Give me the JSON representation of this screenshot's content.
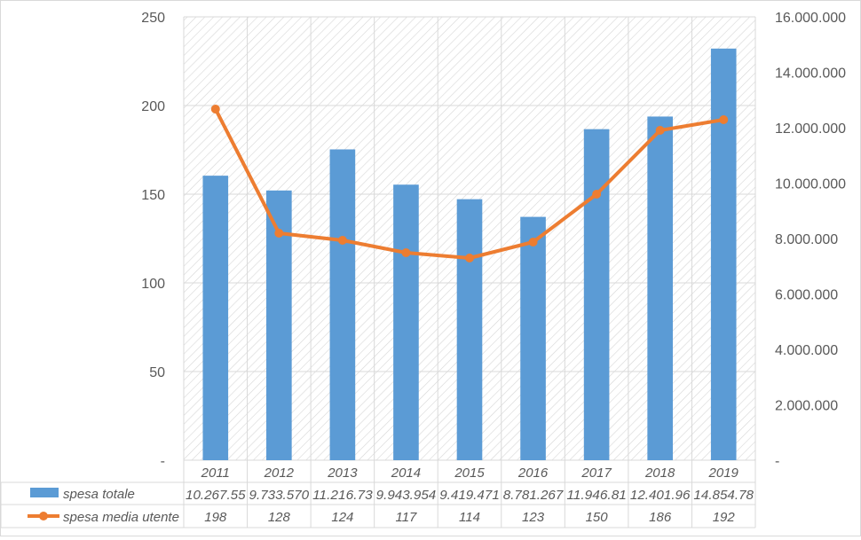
{
  "chart_data": {
    "type": "bar",
    "categories": [
      "2011",
      "2012",
      "2013",
      "2014",
      "2015",
      "2016",
      "2017",
      "2018",
      "2019"
    ],
    "colors": {
      "bar": "#5b9bd5",
      "line": "#ed7d31",
      "grid": "#d9d9d9",
      "hatch": "#d6d6d6"
    },
    "grid": true,
    "legend": "data-table-below",
    "y_left": {
      "ylim": [
        0,
        250
      ],
      "ticks": [
        "-",
        "50",
        "100",
        "150",
        "200",
        "250"
      ]
    },
    "y_right": {
      "ylim": [
        0,
        16000000
      ],
      "ticks": [
        "-",
        "2.000.000",
        "4.000.000",
        "6.000.000",
        "8.000.000",
        "10.000.000",
        "12.000.000",
        "14.000.000",
        "16.000.000"
      ]
    },
    "series": [
      {
        "name": "spesa totale",
        "type": "bar",
        "axis": "right",
        "values": [
          10267550,
          9733570,
          11216730,
          9943954,
          9419471,
          8781267,
          11946810,
          12401960,
          14854780
        ],
        "table_labels": [
          "10.267.55",
          "9.733.570",
          "11.216.73",
          "9.943.954",
          "9.419.471",
          "8.781.267",
          "11.946.81",
          "12.401.96",
          "14.854.78"
        ]
      },
      {
        "name": "spesa media utente",
        "type": "line",
        "axis": "left",
        "values": [
          198,
          128,
          124,
          117,
          114,
          123,
          150,
          186,
          192
        ],
        "table_labels": [
          "198",
          "128",
          "124",
          "117",
          "114",
          "123",
          "150",
          "186",
          "192"
        ]
      }
    ]
  }
}
